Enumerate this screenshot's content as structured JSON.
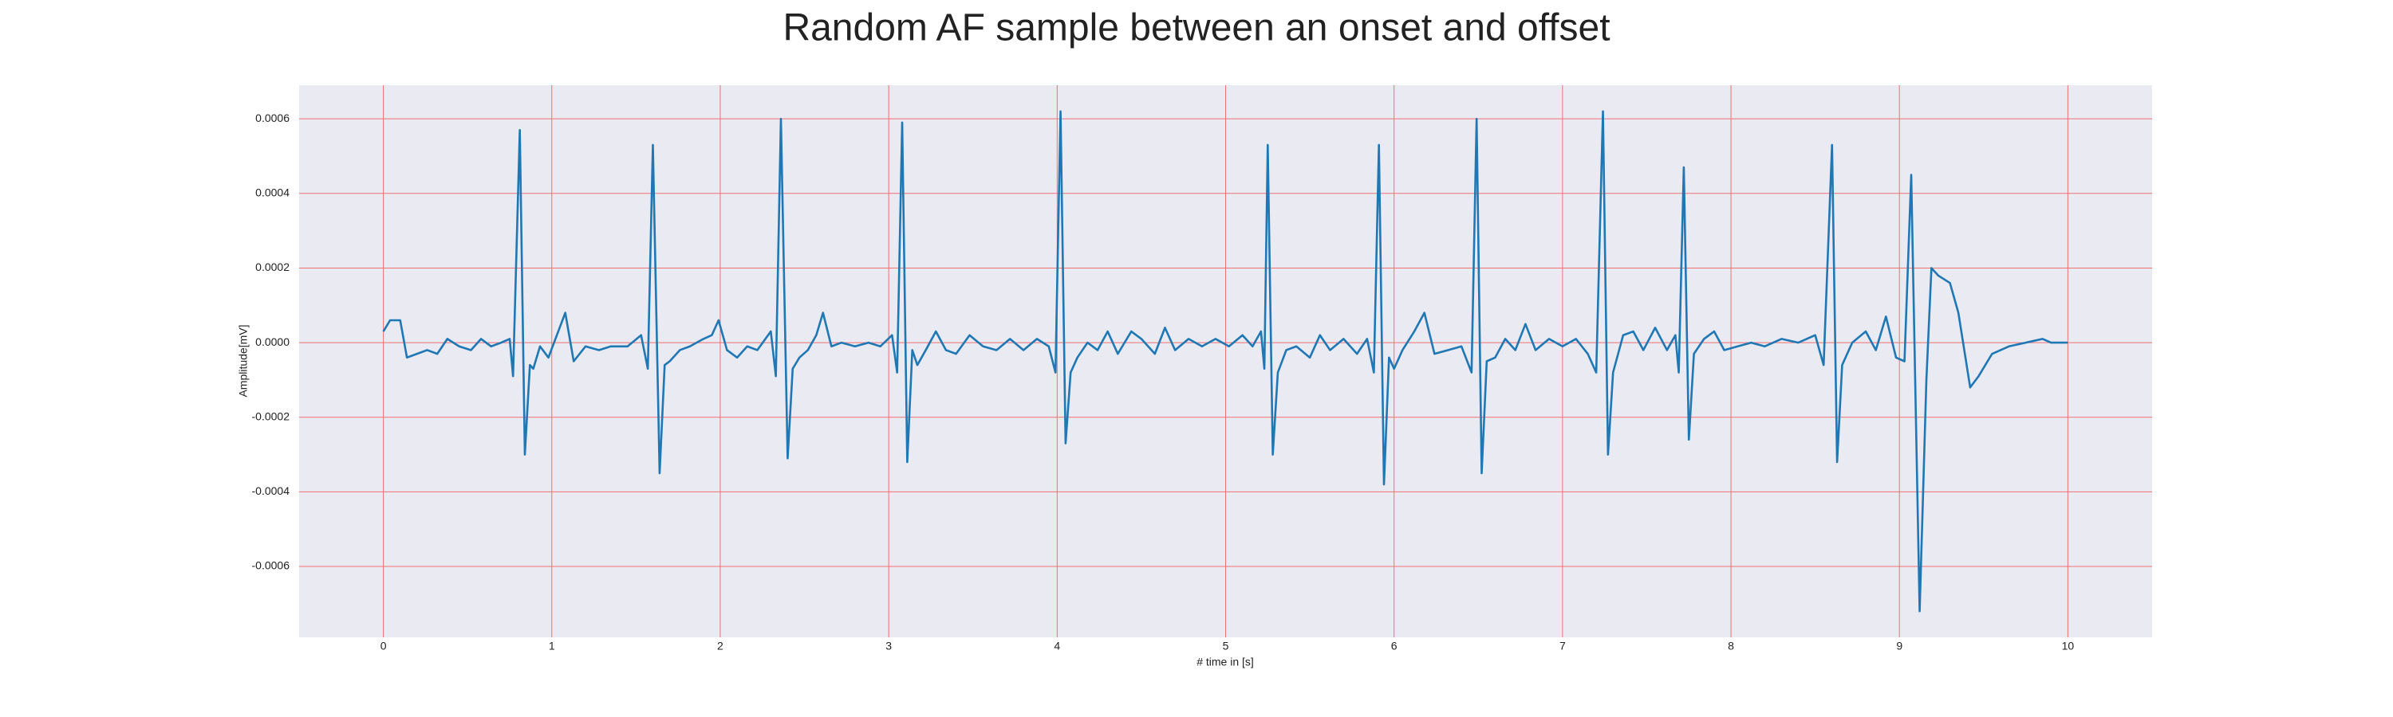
{
  "chart_data": {
    "type": "line",
    "title": "Random AF sample between an onset and offset",
    "xlabel": "# time in [s]",
    "ylabel": "Amplitude[mV]",
    "color": "#1f77b4",
    "grid": true,
    "xlim": [
      -0.5,
      10.5
    ],
    "xticks": [
      0,
      1,
      2,
      3,
      4,
      5,
      6,
      7,
      8,
      9,
      10
    ],
    "ylim": [
      -0.00079,
      0.00069
    ],
    "yticks": [
      -0.0006,
      -0.0004,
      -0.0002,
      {
        "value": 0,
        "label": "0.0000"
      },
      0.0002,
      0.0004,
      0.0006
    ],
    "x": [
      0,
      0.04,
      0.1,
      0.14,
      0.2,
      0.26,
      0.32,
      0.38,
      0.45,
      0.52,
      0.58,
      0.64,
      0.7,
      0.75,
      0.77,
      0.81,
      0.84,
      0.87,
      0.89,
      0.93,
      0.98,
      1.03,
      1.08,
      1.13,
      1.2,
      1.28,
      1.35,
      1.45,
      1.53,
      1.57,
      1.6,
      1.64,
      1.67,
      1.7,
      1.76,
      1.82,
      1.9,
      1.95,
      1.99,
      2.04,
      2.1,
      2.16,
      2.22,
      2.3,
      2.33,
      2.36,
      2.4,
      2.43,
      2.47,
      2.52,
      2.57,
      2.61,
      2.66,
      2.72,
      2.8,
      2.88,
      2.95,
      3.02,
      3.05,
      3.08,
      3.11,
      3.14,
      3.17,
      3.22,
      3.28,
      3.34,
      3.4,
      3.48,
      3.56,
      3.64,
      3.72,
      3.8,
      3.88,
      3.95,
      3.99,
      4.02,
      4.05,
      4.08,
      4.12,
      4.18,
      4.24,
      4.3,
      4.36,
      4.44,
      4.5,
      4.58,
      4.64,
      4.7,
      4.78,
      4.86,
      4.94,
      5.02,
      5.1,
      5.16,
      5.21,
      5.23,
      5.25,
      5.28,
      5.31,
      5.36,
      5.42,
      5.5,
      5.56,
      5.62,
      5.7,
      5.78,
      5.84,
      5.88,
      5.91,
      5.94,
      5.97,
      6.0,
      6.05,
      6.12,
      6.18,
      6.24,
      6.32,
      6.4,
      6.46,
      6.49,
      6.52,
      6.55,
      6.6,
      6.66,
      6.72,
      6.78,
      6.84,
      6.92,
      7.0,
      7.08,
      7.15,
      7.2,
      7.24,
      7.27,
      7.3,
      7.36,
      7.42,
      7.48,
      7.55,
      7.62,
      7.67,
      7.69,
      7.72,
      7.75,
      7.78,
      7.84,
      7.9,
      7.96,
      8.04,
      8.12,
      8.2,
      8.3,
      8.4,
      8.5,
      8.55,
      8.6,
      8.63,
      8.66,
      8.72,
      8.8,
      8.86,
      8.92,
      8.98,
      9.03,
      9.07,
      9.12,
      9.16,
      9.19,
      9.23,
      9.3,
      9.35,
      9.42,
      9.47,
      9.55,
      9.65,
      9.75,
      9.85,
      9.9,
      10
    ],
    "values": [
      3e-05,
      6e-05,
      6e-05,
      -4e-05,
      -3e-05,
      -2e-05,
      -3e-05,
      1e-05,
      -1e-05,
      -2e-05,
      1e-05,
      -1e-05,
      0,
      1e-05,
      -9e-05,
      0.00057,
      -0.0003,
      -6e-05,
      -7e-05,
      -1e-05,
      -4e-05,
      2e-05,
      8e-05,
      -5e-05,
      -1e-05,
      -2e-05,
      -1e-05,
      -1e-05,
      2e-05,
      -7e-05,
      0.00053,
      -0.00035,
      -6e-05,
      -5e-05,
      -2e-05,
      -1e-05,
      1e-05,
      2e-05,
      6e-05,
      -2e-05,
      -4e-05,
      -1e-05,
      -2e-05,
      3e-05,
      -9e-05,
      0.0006,
      -0.00031,
      -7e-05,
      -4e-05,
      -2e-05,
      2e-05,
      8e-05,
      -1e-05,
      0,
      -1e-05,
      0,
      -1e-05,
      2e-05,
      -8e-05,
      0.00059,
      -0.00032,
      -2e-05,
      -6e-05,
      -2e-05,
      3e-05,
      -2e-05,
      -3e-05,
      2e-05,
      -1e-05,
      -2e-05,
      1e-05,
      -2e-05,
      1e-05,
      -1e-05,
      -8e-05,
      0.00062,
      -0.00027,
      -8e-05,
      -4e-05,
      0,
      -2e-05,
      3e-05,
      -3e-05,
      3e-05,
      1e-05,
      -3e-05,
      4e-05,
      -2e-05,
      1e-05,
      -1e-05,
      1e-05,
      -1e-05,
      2e-05,
      -1e-05,
      3e-05,
      -7e-05,
      0.00053,
      -0.0003,
      -8e-05,
      -2e-05,
      -1e-05,
      -4e-05,
      2e-05,
      -2e-05,
      1e-05,
      -3e-05,
      1e-05,
      -8e-05,
      0.00053,
      -0.00038,
      -4e-05,
      -7e-05,
      -2e-05,
      3e-05,
      8e-05,
      -3e-05,
      -2e-05,
      -1e-05,
      -8e-05,
      0.0006,
      -0.00035,
      -5e-05,
      -4e-05,
      1e-05,
      -2e-05,
      5e-05,
      -2e-05,
      1e-05,
      -1e-05,
      1e-05,
      -3e-05,
      -8e-05,
      0.00062,
      -0.0003,
      -8e-05,
      2e-05,
      3e-05,
      -2e-05,
      4e-05,
      -2e-05,
      2e-05,
      -8e-05,
      0.00047,
      -0.00026,
      -3e-05,
      1e-05,
      3e-05,
      -2e-05,
      -1e-05,
      0,
      -1e-05,
      1e-05,
      0,
      2e-05,
      -6e-05,
      0.00053,
      -0.00032,
      -6e-05,
      0,
      3e-05,
      -2e-05,
      7e-05,
      -4e-05,
      -5e-05,
      0.00045,
      -0.00072,
      -0.0001,
      0.0002,
      0.00018,
      0.00016,
      8e-05,
      -0.00012,
      -9e-05,
      -3e-05,
      -1e-05,
      0,
      1e-05,
      0,
      0
    ]
  }
}
